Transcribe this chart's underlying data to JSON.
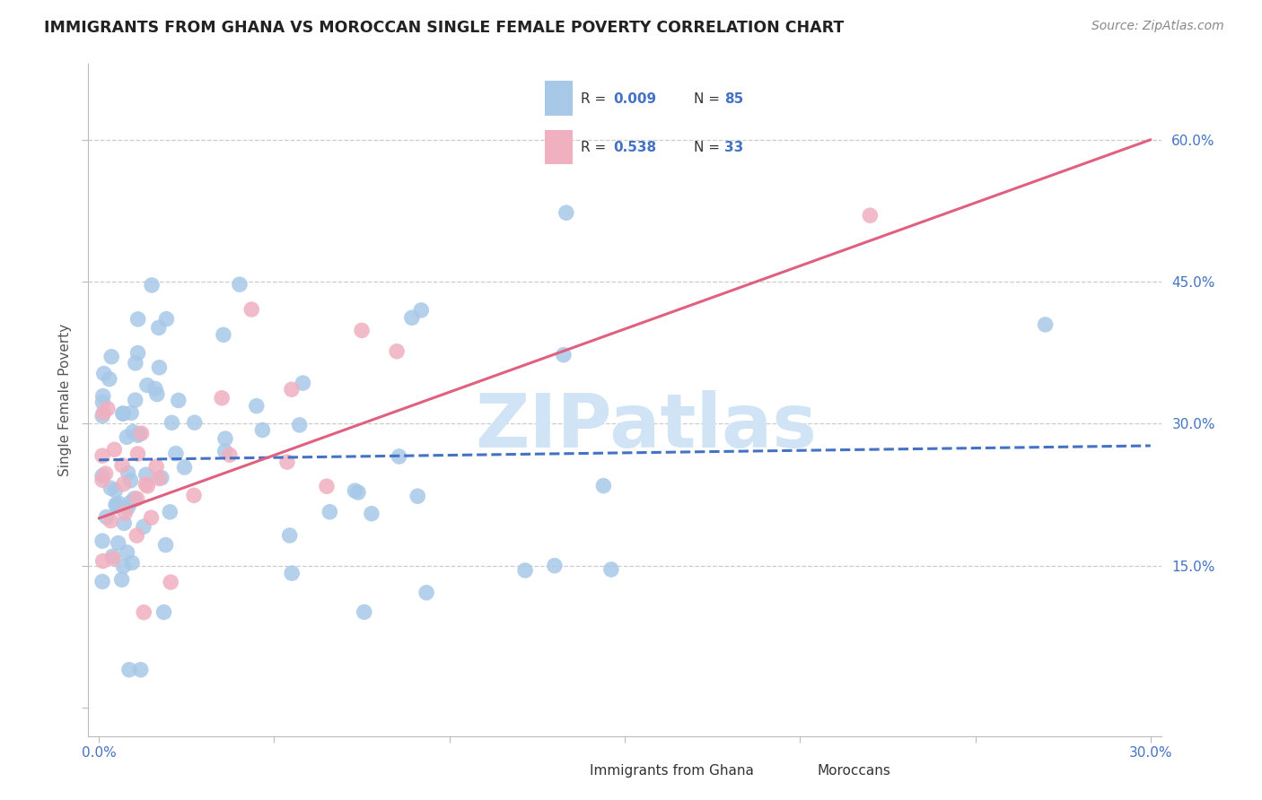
{
  "title": "IMMIGRANTS FROM GHANA VS MOROCCAN SINGLE FEMALE POVERTY CORRELATION CHART",
  "source": "Source: ZipAtlas.com",
  "ylabel": "Single Female Poverty",
  "xlim": [
    0.0,
    0.3
  ],
  "ylim": [
    0.0,
    0.65
  ],
  "ytick_values": [
    0.15,
    0.3,
    0.45,
    0.6
  ],
  "xtick_values": [
    0.0,
    0.3
  ],
  "ghana_line_color": "#4472c4",
  "moroccan_line_color": "#e06080",
  "ghana_scatter_color": "#a8c8e8",
  "moroccan_scatter_color": "#f0b0c0",
  "watermark_text": "ZIPatlas",
  "watermark_color": "#d0e4f5",
  "background_color": "#ffffff",
  "grid_color": "#cccccc",
  "legend_R1": "0.009",
  "legend_N1": "85",
  "legend_R2": "0.538",
  "legend_N2": "33",
  "legend_label1": "Immigrants from Ghana",
  "legend_label2": "Moroccans",
  "tick_color": "#4472c4",
  "title_color": "#222222",
  "source_color": "#888888",
  "ylabel_color": "#555555"
}
